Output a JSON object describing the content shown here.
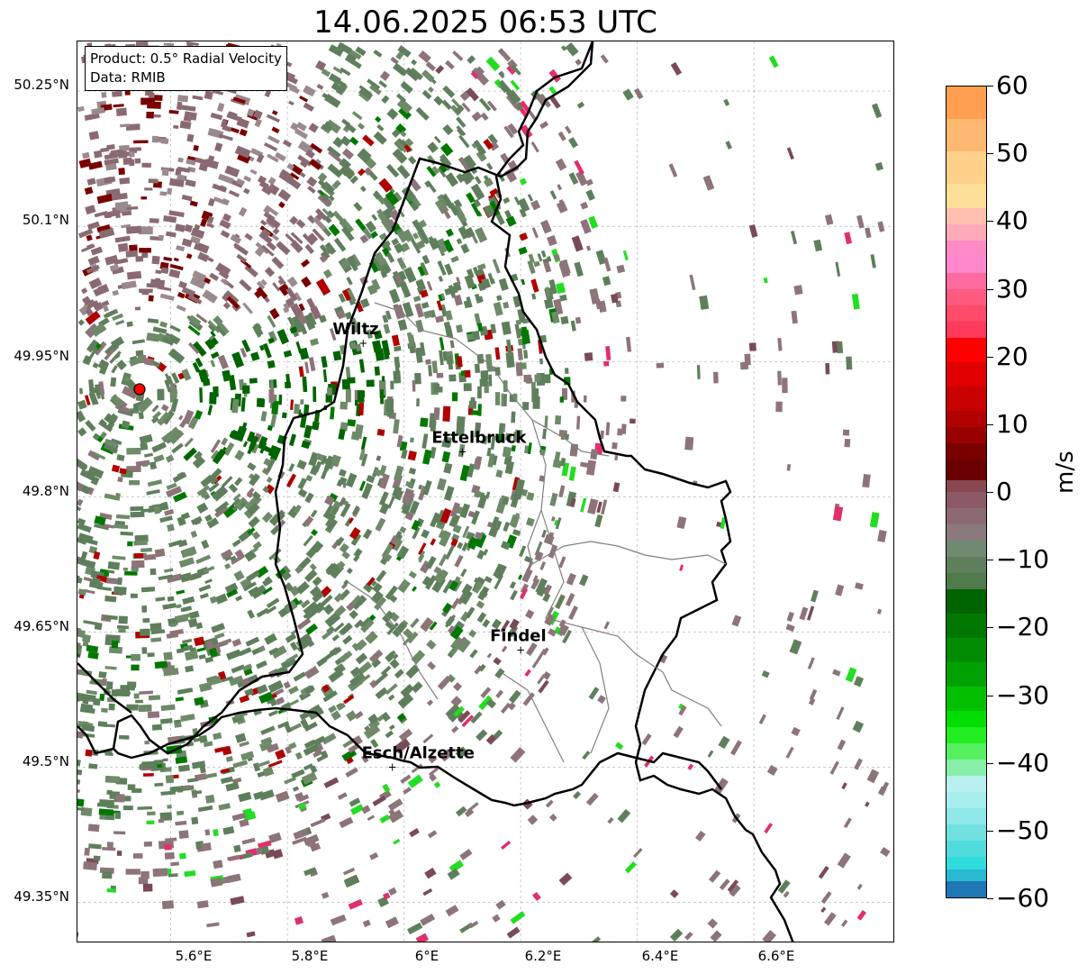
{
  "title": "14.06.2025 06:53 UTC",
  "info": {
    "product": "Product: 0.5° Radial Velocity",
    "data": "Data: RMIB"
  },
  "axes": {
    "lat_labels": [
      "50.25°N",
      "50.1°N",
      "49.95°N",
      "49.8°N",
      "49.65°N",
      "49.5°N",
      "49.35°N"
    ],
    "lon_labels": [
      "5.6°E",
      "5.8°E",
      "6°E",
      "6.2°E",
      "6.4°E",
      "6.6°E"
    ]
  },
  "cities": [
    {
      "name": "Wiltz",
      "lon": 5.93,
      "lat": 49.97
    },
    {
      "name": "Ettelbruck",
      "lon": 6.1,
      "lat": 49.85
    },
    {
      "name": "Findel",
      "lon": 6.2,
      "lat": 49.63
    },
    {
      "name": "Esch/Alzette",
      "lon": 5.98,
      "lat": 49.5
    }
  ],
  "radar_site": {
    "lon": 5.505,
    "lat": 49.915
  },
  "colorbar": {
    "label": "m/s",
    "ticks": [
      "60",
      "50",
      "40",
      "30",
      "20",
      "10",
      "0",
      "−10",
      "−20",
      "−30",
      "−40",
      "−50",
      "−60"
    ],
    "min": -60,
    "max": 60,
    "colors": {
      "orange": "#ff9f4f",
      "peach": "#ffcc88",
      "pink": "#ff88cc",
      "red": "#ff0000",
      "darkred": "#7a0000",
      "mauve": "#8b5a66",
      "grey_green": "#6b8468",
      "darkgreen": "#006400",
      "green": "#00dd00",
      "lightgreen": "#88f0a8",
      "lightcyan": "#b8f0f0",
      "cyan": "#30dddd",
      "blue": "#1f77b4"
    }
  }
}
